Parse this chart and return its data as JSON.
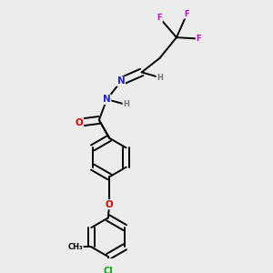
{
  "bg_color": "#ececec",
  "fig_size": [
    3.0,
    3.0
  ],
  "dpi": 100,
  "atom_colors": {
    "C": "#000000",
    "N": "#2222dd",
    "O": "#dd0000",
    "F": "#cc00cc",
    "Cl": "#00aa00",
    "H": "#777777"
  },
  "bond_color": "#000000",
  "bond_width": 1.4,
  "font_size_atom": 7.5,
  "font_size_small": 6.0,
  "font_size_cl": 7.0
}
